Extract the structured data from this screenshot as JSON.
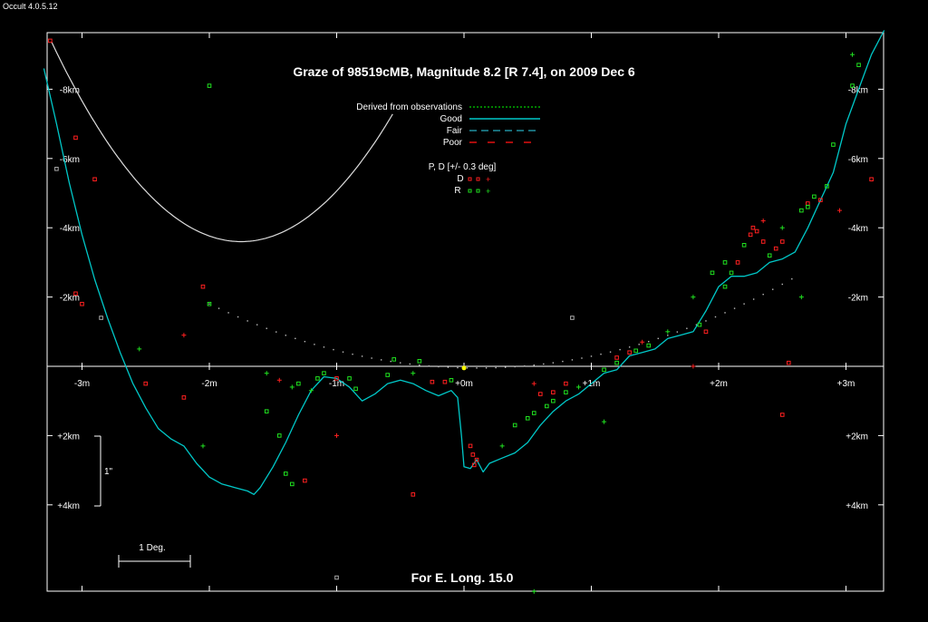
{
  "app": {
    "version_label": "Occult 4.0.5.12"
  },
  "chart_data": {
    "type": "scatter",
    "title": "Graze of  98519cMB,  Magnitude 8.2 [R 7.4],  on 2009 Dec  6",
    "footer": "For E. Long. 15.0",
    "x_unit": "minutes",
    "y_unit": "km",
    "xlim": [
      -3.3,
      3.3
    ],
    "ylim": [
      -9.5,
      6.5
    ],
    "x_ticks": [
      -3,
      -2,
      -1,
      0,
      1,
      2,
      3
    ],
    "x_tick_labels": [
      "-3m",
      "-2m",
      "-1m",
      "+0m",
      "+1m",
      "+2m",
      "+3m"
    ],
    "y_ticks": [
      -8,
      -6,
      -4,
      -2,
      2,
      4
    ],
    "y_tick_labels": [
      "-8km",
      "-6km",
      "-4km",
      "-2km",
      "+2km",
      "+4km"
    ],
    "scale_bars": {
      "vertical_label": "1\"",
      "horizontal_label": "1 Deg."
    },
    "legend": {
      "derived": "Derived from observations",
      "good": "Good",
      "fair": "Fair",
      "poor": "Poor",
      "pd_header": "P, D [+/- 0.3 deg]",
      "d_label": "D",
      "r_label": "R"
    },
    "colors": {
      "background": "#000000",
      "axes": "#ffffff",
      "profile": "#00c8c8",
      "derived": "#00ff00",
      "fair": "#2090a0",
      "poor": "#e01010",
      "disappear": "#ff2020",
      "reappear": "#20e020",
      "grey": "#aaaaaa",
      "center": "#ffff00"
    },
    "limit_curve": {
      "vertex_x": -1.75,
      "vertex_y": -3.6,
      "a": 2.6
    },
    "secondary_limit": {
      "vertex_x": 0.1,
      "vertex_y": 0.05,
      "a": 0.42
    },
    "profile": [
      [
        -3.3,
        -8.6
      ],
      [
        -3.2,
        -7.0
      ],
      [
        -3.1,
        -5.3
      ],
      [
        -3.0,
        -3.8
      ],
      [
        -2.9,
        -2.5
      ],
      [
        -2.8,
        -1.4
      ],
      [
        -2.7,
        -0.4
      ],
      [
        -2.6,
        0.5
      ],
      [
        -2.5,
        1.2
      ],
      [
        -2.4,
        1.8
      ],
      [
        -2.3,
        2.1
      ],
      [
        -2.2,
        2.3
      ],
      [
        -2.1,
        2.8
      ],
      [
        -2.0,
        3.2
      ],
      [
        -1.9,
        3.4
      ],
      [
        -1.8,
        3.5
      ],
      [
        -1.7,
        3.6
      ],
      [
        -1.65,
        3.7
      ],
      [
        -1.6,
        3.5
      ],
      [
        -1.5,
        2.9
      ],
      [
        -1.4,
        2.2
      ],
      [
        -1.3,
        1.4
      ],
      [
        -1.2,
        0.7
      ],
      [
        -1.1,
        0.3
      ],
      [
        -1.0,
        0.35
      ],
      [
        -0.9,
        0.6
      ],
      [
        -0.8,
        1.0
      ],
      [
        -0.7,
        0.8
      ],
      [
        -0.6,
        0.5
      ],
      [
        -0.5,
        0.4
      ],
      [
        -0.4,
        0.5
      ],
      [
        -0.3,
        0.7
      ],
      [
        -0.2,
        0.85
      ],
      [
        -0.1,
        0.7
      ],
      [
        -0.05,
        0.9
      ],
      [
        -0.02,
        2.0
      ],
      [
        0.0,
        2.9
      ],
      [
        0.05,
        2.95
      ],
      [
        0.1,
        2.7
      ],
      [
        0.15,
        3.05
      ],
      [
        0.2,
        2.8
      ],
      [
        0.3,
        2.65
      ],
      [
        0.4,
        2.5
      ],
      [
        0.5,
        2.2
      ],
      [
        0.6,
        1.7
      ],
      [
        0.7,
        1.3
      ],
      [
        0.8,
        1.0
      ],
      [
        0.9,
        0.8
      ],
      [
        1.0,
        0.5
      ],
      [
        1.1,
        0.2
      ],
      [
        1.2,
        0.1
      ],
      [
        1.3,
        -0.3
      ],
      [
        1.4,
        -0.4
      ],
      [
        1.5,
        -0.5
      ],
      [
        1.6,
        -0.8
      ],
      [
        1.7,
        -0.9
      ],
      [
        1.8,
        -1.0
      ],
      [
        1.9,
        -1.6
      ],
      [
        2.0,
        -2.3
      ],
      [
        2.1,
        -2.6
      ],
      [
        2.2,
        -2.6
      ],
      [
        2.3,
        -2.7
      ],
      [
        2.4,
        -3.0
      ],
      [
        2.5,
        -3.1
      ],
      [
        2.6,
        -3.3
      ],
      [
        2.7,
        -4.0
      ],
      [
        2.8,
        -4.8
      ],
      [
        2.9,
        -5.6
      ],
      [
        3.0,
        -7.0
      ],
      [
        3.1,
        -8.0
      ],
      [
        3.2,
        -9.0
      ],
      [
        3.3,
        -9.7
      ]
    ],
    "disappearances": [
      [
        -3.25,
        -9.4
      ],
      [
        -3.05,
        -6.6
      ],
      [
        -2.9,
        -5.4
      ],
      [
        -3.05,
        -2.1
      ],
      [
        -3.0,
        -1.8
      ],
      [
        -2.5,
        0.5
      ],
      [
        -2.2,
        0.9
      ],
      [
        -2.05,
        -2.3
      ],
      [
        -1.25,
        3.3
      ],
      [
        -1.0,
        0.35
      ],
      [
        -0.4,
        3.7
      ],
      [
        -0.25,
        0.45
      ],
      [
        -0.15,
        0.45
      ],
      [
        0.05,
        2.3
      ],
      [
        0.07,
        2.55
      ],
      [
        0.1,
        2.7
      ],
      [
        0.08,
        2.85
      ],
      [
        0.6,
        0.8
      ],
      [
        0.7,
        0.75
      ],
      [
        0.8,
        0.5
      ],
      [
        1.2,
        -0.25
      ],
      [
        1.3,
        -0.4
      ],
      [
        1.9,
        -1.0
      ],
      [
        2.15,
        -3.0
      ],
      [
        2.25,
        -3.8
      ],
      [
        2.27,
        -4.0
      ],
      [
        2.3,
        -3.9
      ],
      [
        2.35,
        -3.6
      ],
      [
        2.45,
        -3.4
      ],
      [
        2.5,
        -3.6
      ],
      [
        2.5,
        1.4
      ],
      [
        2.55,
        -0.1
      ],
      [
        2.7,
        -4.7
      ],
      [
        2.8,
        -4.8
      ],
      [
        3.2,
        -5.4
      ]
    ],
    "reappearances": [
      [
        -2.0,
        -8.1
      ],
      [
        -2.0,
        -1.8
      ],
      [
        -1.55,
        1.3
      ],
      [
        -1.45,
        2.0
      ],
      [
        -1.4,
        3.1
      ],
      [
        -1.35,
        3.4
      ],
      [
        -1.3,
        0.5
      ],
      [
        -1.15,
        0.35
      ],
      [
        -1.1,
        0.2
      ],
      [
        -0.9,
        0.35
      ],
      [
        -0.85,
        0.65
      ],
      [
        -0.6,
        0.25
      ],
      [
        -0.55,
        -0.2
      ],
      [
        -0.35,
        -0.15
      ],
      [
        -0.1,
        0.4
      ],
      [
        0.4,
        1.7
      ],
      [
        0.5,
        1.5
      ],
      [
        0.55,
        1.35
      ],
      [
        0.65,
        1.15
      ],
      [
        0.7,
        1.0
      ],
      [
        0.8,
        0.75
      ],
      [
        1.1,
        0.1
      ],
      [
        1.2,
        -0.1
      ],
      [
        1.35,
        -0.45
      ],
      [
        1.45,
        -0.6
      ],
      [
        1.85,
        -1.2
      ],
      [
        2.05,
        -2.3
      ],
      [
        2.1,
        -2.7
      ],
      [
        2.2,
        -3.5
      ],
      [
        2.4,
        -3.2
      ],
      [
        2.65,
        -4.5
      ],
      [
        2.7,
        -4.6
      ],
      [
        2.75,
        -4.9
      ],
      [
        2.85,
        -5.2
      ],
      [
        2.9,
        -6.4
      ],
      [
        3.05,
        -8.1
      ],
      [
        3.1,
        -8.7
      ],
      [
        1.95,
        -2.7
      ],
      [
        2.05,
        -3.0
      ]
    ],
    "grey_points": [
      [
        -3.2,
        -5.7
      ],
      [
        -2.85,
        -1.4
      ],
      [
        0.85,
        -1.4
      ],
      [
        -1.0,
        6.1
      ]
    ],
    "plus_points": [
      [
        -2.55,
        -0.5
      ],
      [
        -2.2,
        -0.9
      ],
      [
        -2.05,
        2.3
      ],
      [
        -1.55,
        0.2
      ],
      [
        -1.45,
        0.4
      ],
      [
        -1.35,
        0.6
      ],
      [
        -1.2,
        0.7
      ],
      [
        -1.0,
        2.0
      ],
      [
        -0.4,
        0.2
      ],
      [
        0.3,
        2.3
      ],
      [
        0.55,
        0.5
      ],
      [
        0.9,
        0.6
      ],
      [
        1.1,
        1.6
      ],
      [
        1.4,
        -0.7
      ],
      [
        1.6,
        -1.0
      ],
      [
        1.8,
        -2.0
      ],
      [
        2.35,
        -4.2
      ],
      [
        2.5,
        -4.0
      ],
      [
        2.65,
        -2.0
      ],
      [
        2.95,
        -4.5
      ],
      [
        3.05,
        -9.0
      ],
      [
        0.55,
        6.5
      ],
      [
        1.8,
        0.0
      ]
    ],
    "center_point": [
      0.0,
      0.05
    ]
  }
}
